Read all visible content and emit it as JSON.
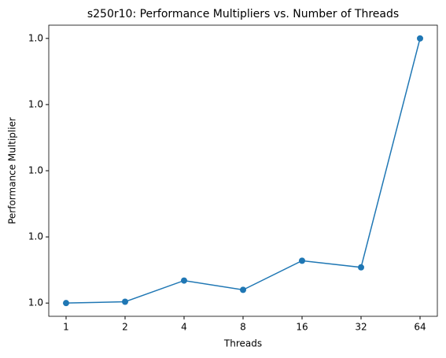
{
  "chart_data": {
    "type": "line",
    "title": "s250r10: Performance Multipliers vs. Number of Threads",
    "x_label": "Threads",
    "y_label": "Performance Multiplier",
    "categories": [
      "1",
      "2",
      "4",
      "8",
      "16",
      "32",
      "64"
    ],
    "series": [
      {
        "name": "Performance Multiplier",
        "color": "#1f77b4",
        "values": [
          1.0,
          1.00001,
          1.00017,
          1.0001,
          1.00032,
          1.00027,
          1.002
        ]
      }
    ],
    "ylim": [
      0.9999,
      1.0021
    ],
    "yticks": [
      {
        "value": 1.0,
        "label": "1.0"
      },
      {
        "value": 1.0005,
        "label": "1.0"
      },
      {
        "value": 1.001,
        "label": "1.0"
      },
      {
        "value": 1.0015,
        "label": "1.0"
      },
      {
        "value": 1.002,
        "label": "1.0"
      }
    ],
    "grid": false
  }
}
